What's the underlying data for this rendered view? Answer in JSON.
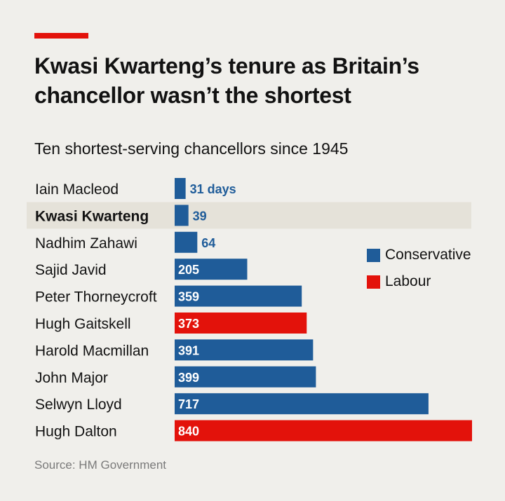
{
  "header": {
    "title": "Kwasi Kwarteng’s tenure as Britain’s chancellor wasn’t the shortest",
    "subtitle": "Ten shortest-serving chancellors since 1945"
  },
  "source": "Source: HM Government",
  "colors": {
    "background": "#f0efeb",
    "accent": "#e3120b",
    "conservative": "#1f5c99",
    "labour": "#e3120b",
    "highlight": "#e5e2d9"
  },
  "chart_data": {
    "type": "bar",
    "orientation": "horizontal",
    "categories": [
      "Iain Macleod",
      "Kwasi Kwarteng",
      "Nadhim Zahawi",
      "Sajid Javid",
      "Peter Thorneycroft",
      "Hugh Gaitskell",
      "Harold Macmillan",
      "John Major",
      "Selwyn Lloyd",
      "Hugh Dalton"
    ],
    "values": [
      31,
      39,
      64,
      205,
      359,
      373,
      391,
      399,
      717,
      840
    ],
    "value_labels": [
      "31 days",
      "39",
      "64",
      "205",
      "359",
      "373",
      "391",
      "399",
      "717",
      "840"
    ],
    "party": [
      "Conservative",
      "Conservative",
      "Conservative",
      "Conservative",
      "Conservative",
      "Labour",
      "Conservative",
      "Conservative",
      "Conservative",
      "Labour"
    ],
    "highlighted": "Kwasi Kwarteng",
    "legend": [
      {
        "name": "Conservative",
        "color": "#1f5c99"
      },
      {
        "name": "Labour",
        "color": "#e3120b"
      }
    ],
    "legend_position": "right",
    "title": "Ten shortest-serving chancellors since 1945",
    "xlim": [
      0,
      840
    ],
    "grid": false
  }
}
